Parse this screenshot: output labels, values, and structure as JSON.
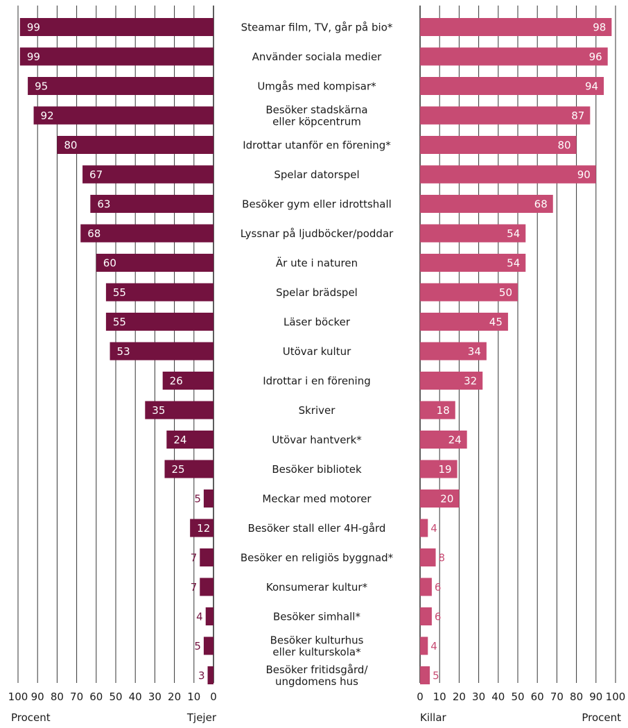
{
  "chart_data": {
    "type": "bar",
    "categories": [
      "Steamar film, TV, går på bio*",
      "Använder sociala medier",
      "Umgås med kompisar*",
      "Besöker stadskärna\neller köpcentrum",
      "Idrottar utanför en förening*",
      "Spelar datorspel",
      "Besöker gym eller idrottshall",
      "Lyssnar på ljudböcker/poddar",
      "Är ute i naturen",
      "Spelar brädspel",
      "Läser böcker",
      "Utövar kultur",
      "Idrottar i en förening",
      "Skriver",
      "Utövar hantverk*",
      "Besöker bibliotek",
      "Meckar med motorer",
      "Besöker stall eller 4H-gård",
      "Besöker en religiös byggnad*",
      "Konsumerar kultur*",
      "Besöker simhall*",
      "Besöker kulturhus\neller kulturskola*",
      "Besöker fritidsgård/\nungdomens hus"
    ],
    "series": [
      {
        "name": "Tjejer",
        "values": [
          99,
          99,
          95,
          92,
          80,
          67,
          63,
          68,
          60,
          55,
          55,
          53,
          26,
          35,
          24,
          25,
          5,
          12,
          7,
          7,
          4,
          5,
          3
        ]
      },
      {
        "name": "Killar",
        "values": [
          98,
          96,
          94,
          87,
          80,
          90,
          68,
          54,
          54,
          50,
          45,
          34,
          32,
          18,
          24,
          19,
          20,
          4,
          8,
          6,
          6,
          4,
          5
        ]
      }
    ],
    "xlim": [
      0,
      100
    ],
    "xticks": [
      0,
      10,
      20,
      30,
      40,
      50,
      60,
      70,
      80,
      90,
      100
    ],
    "left_axis_label": "Procent",
    "left_series_label": "Tjejer",
    "right_series_label": "Killar",
    "right_axis_label": "Procent",
    "grid": true,
    "colors": {
      "Tjejer": "#73123f",
      "Killar": "#c74b73"
    }
  }
}
